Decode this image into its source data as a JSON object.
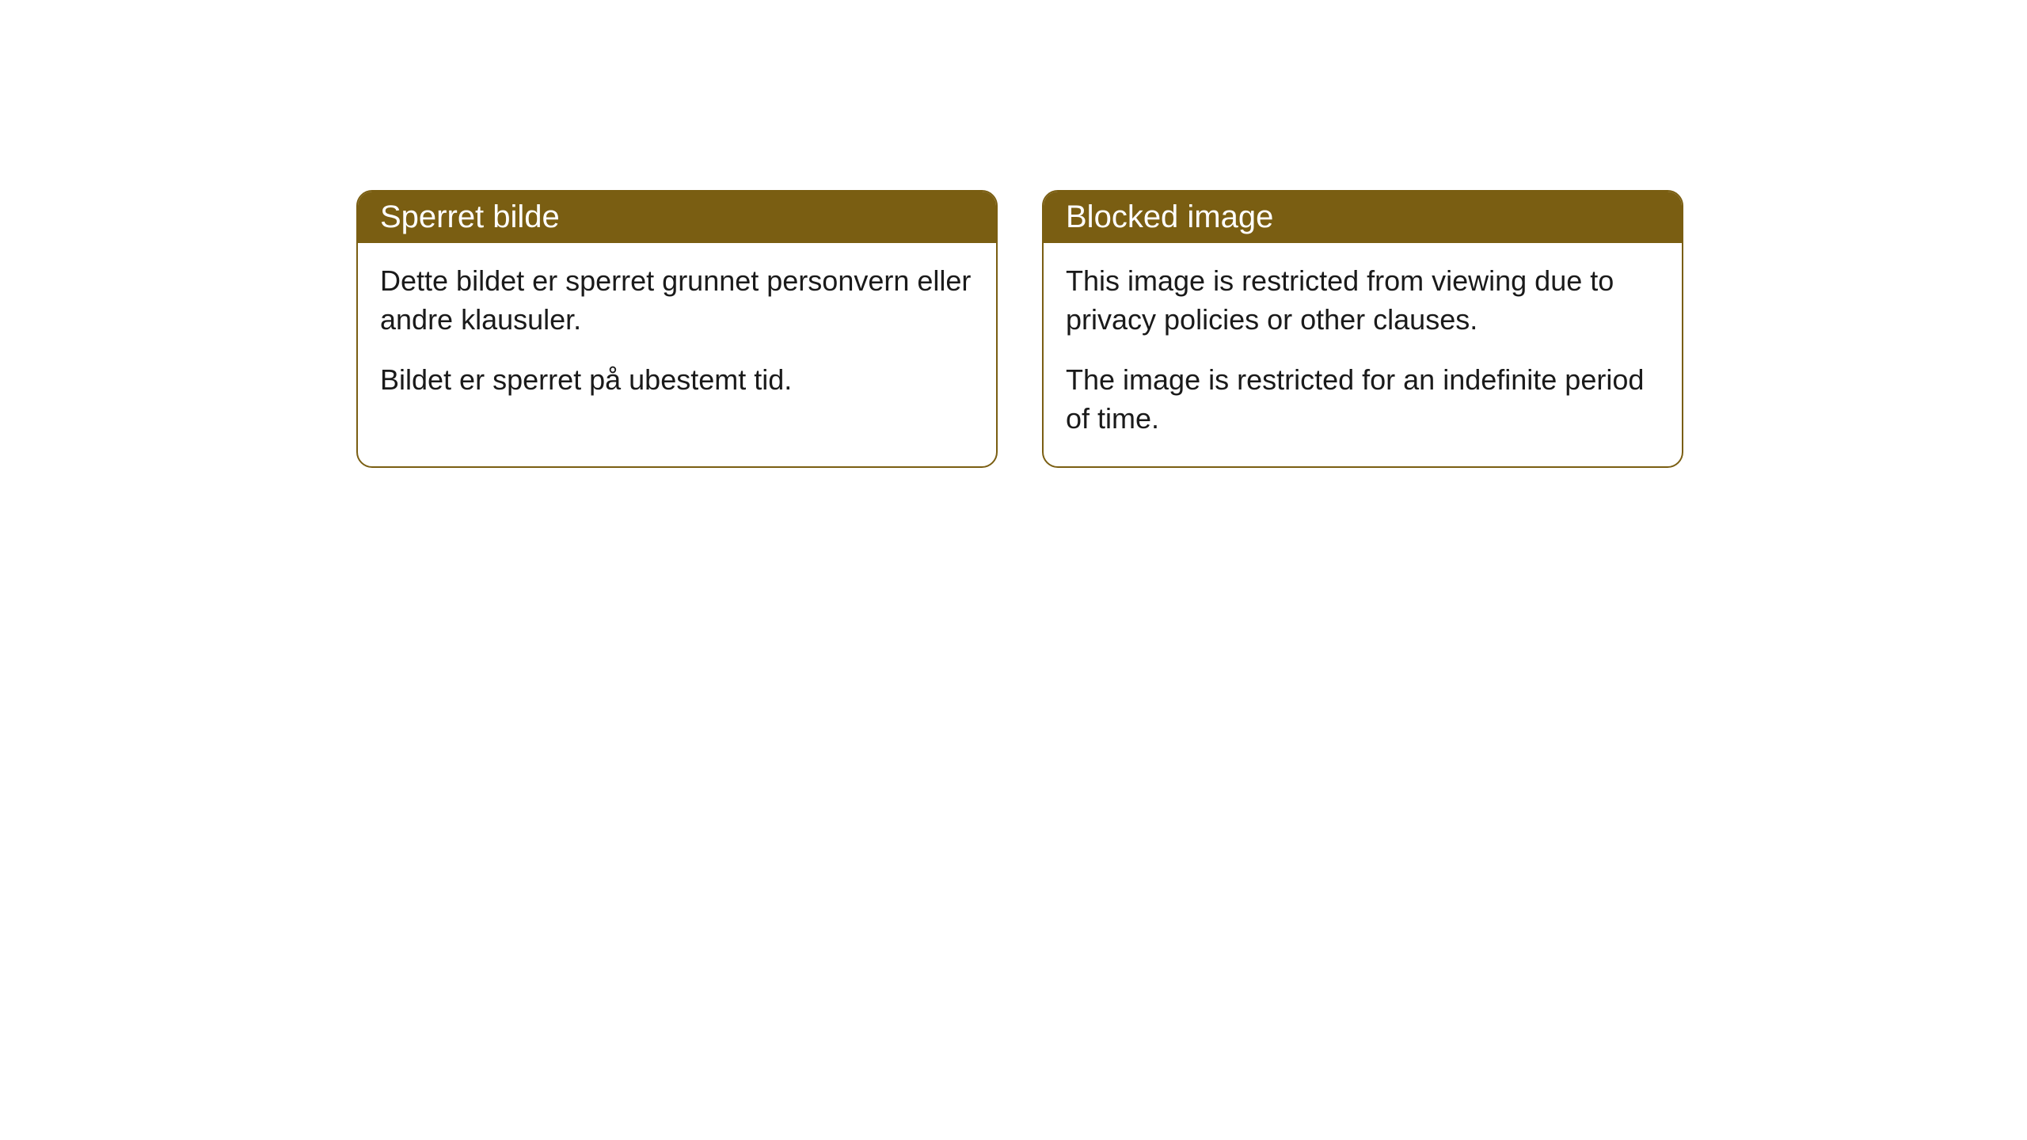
{
  "cards": [
    {
      "title": "Sperret bilde",
      "paragraph1": "Dette bildet er sperret grunnet personvern eller andre klausuler.",
      "paragraph2": "Bildet er sperret på ubestemt tid."
    },
    {
      "title": "Blocked image",
      "paragraph1": "This image is restricted from viewing due to privacy policies or other clauses.",
      "paragraph2": "The image is restricted for an indefinite period of time."
    }
  ],
  "styling": {
    "header_background_color": "#7a5e12",
    "header_text_color": "#ffffff",
    "border_color": "#7a5e12",
    "body_background_color": "#ffffff",
    "body_text_color": "#1a1a1a",
    "border_radius": 20,
    "header_fontsize": 40,
    "body_fontsize": 36
  }
}
